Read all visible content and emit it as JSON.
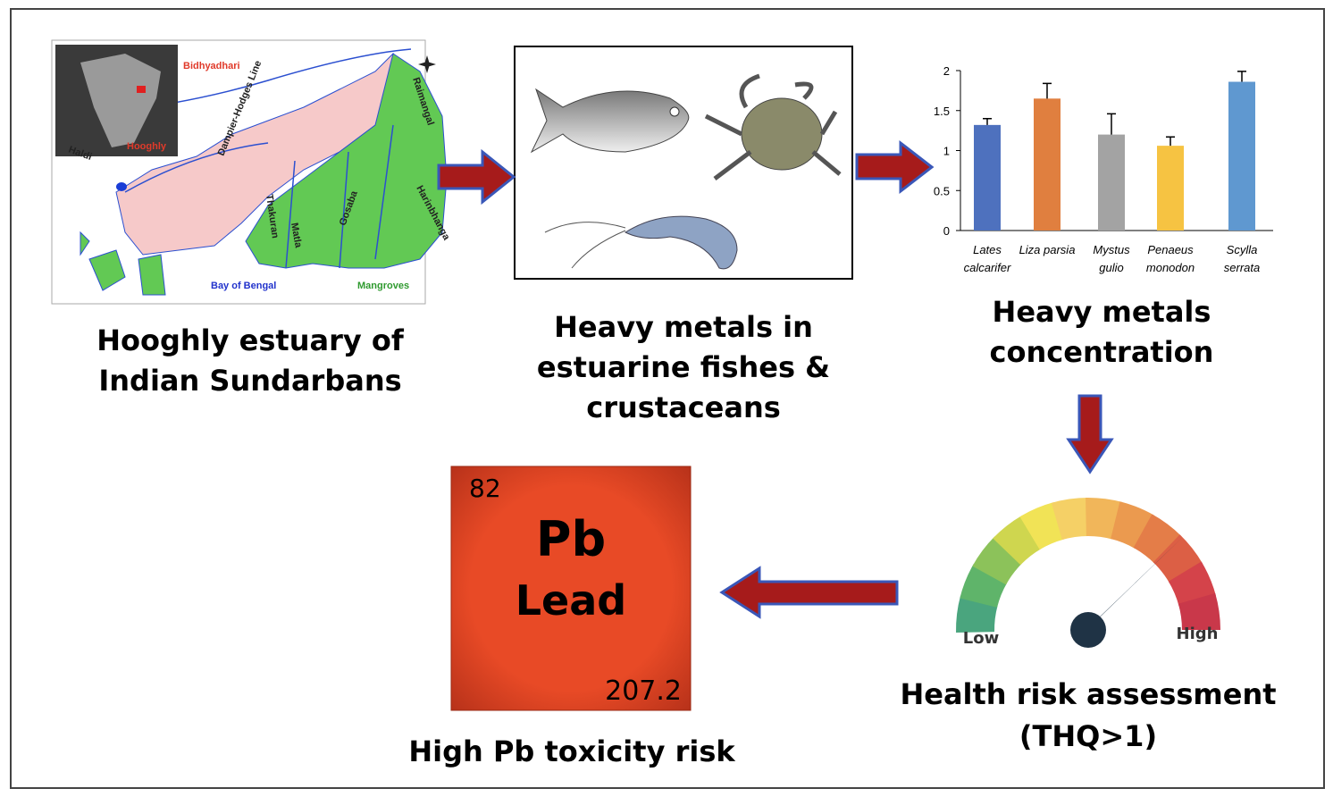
{
  "map": {
    "labels": {
      "bidhyadhari": "Bidhyadhari",
      "hooghly": "Hooghly",
      "haldi": "Haldi",
      "dampier": "Dampier-Hodges Line",
      "raimangal": "Raimangal",
      "harinbhanga": "Harinbhanga",
      "thakuran": "Thakuran",
      "matla": "Matla",
      "gosaba": "Gosaba",
      "bay": "Bay of Bengal",
      "mangroves": "Mangroves"
    },
    "caption": [
      "Hooghly estuary of",
      "Indian Sundarbans"
    ]
  },
  "organisms": {
    "caption": [
      "Heavy metals in",
      "estuarine fishes &",
      "crustaceans"
    ]
  },
  "chart_data": {
    "type": "bar",
    "categories": [
      [
        "Lates",
        "calcarifer"
      ],
      [
        "Liza parsia"
      ],
      [
        "Mystus",
        "gulio"
      ],
      [
        "Penaeus",
        "monodon"
      ],
      [
        "Scylla",
        "serrata"
      ]
    ],
    "values": [
      1.32,
      1.65,
      1.2,
      1.06,
      1.86
    ],
    "errors": [
      0.08,
      0.19,
      0.26,
      0.11,
      0.13
    ],
    "colors": [
      "#4e71be",
      "#e07f3f",
      "#a3a3a3",
      "#f6c342",
      "#5f98d0"
    ],
    "ylim": [
      0,
      2
    ],
    "yticks": [
      0,
      0.5,
      1,
      1.5,
      2
    ],
    "caption": [
      "Heavy metals",
      "concentration"
    ]
  },
  "gauge": {
    "low": "Low",
    "high": "High",
    "caption": [
      "Health risk assessment",
      "(THQ>1)"
    ]
  },
  "element": {
    "number": 82,
    "symbol": "Pb",
    "name": "Lead",
    "mass": 207.2,
    "caption": "High Pb toxicity risk"
  }
}
